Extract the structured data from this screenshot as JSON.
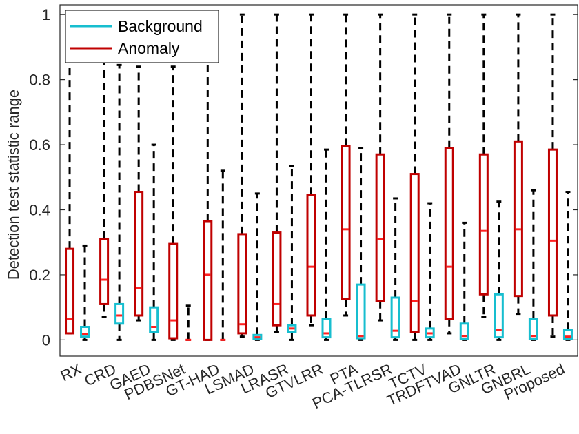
{
  "chart_data": {
    "type": "boxplot",
    "title": "",
    "xlabel": "",
    "ylabel": "Detection test statistic range",
    "ylim": [
      -0.05,
      1.03
    ],
    "yticks": [
      0,
      0.2,
      0.4,
      0.6,
      0.8,
      1
    ],
    "ytick_labels": [
      "0",
      "0.2",
      "0.4",
      "0.6",
      "0.8",
      "1"
    ],
    "legend_position": "top-left",
    "categories": [
      "RX",
      "CRD",
      "GAED",
      "PDBSNet",
      "GT-HAD",
      "LSMAD",
      "LRASR",
      "GTVLRR",
      "PTA",
      "PCA-TLRSR",
      "TCTV",
      "TRDFTVAD",
      "GNLTR",
      "GNBRL",
      "Proposed"
    ],
    "series": [
      {
        "name": "Anomaly",
        "color": "#c00000",
        "boxes": [
          {
            "whisker_low": 0.02,
            "q1": 0.02,
            "median": 0.065,
            "q3": 0.28,
            "whisker_high": 1.0
          },
          {
            "whisker_low": 0.07,
            "q1": 0.11,
            "median": 0.185,
            "q3": 0.31,
            "whisker_high": 0.99
          },
          {
            "whisker_low": 0.06,
            "q1": 0.075,
            "median": 0.16,
            "q3": 0.455,
            "whisker_high": 0.84
          },
          {
            "whisker_low": 0.0,
            "q1": 0.005,
            "median": 0.06,
            "q3": 0.295,
            "whisker_high": 0.84
          },
          {
            "whisker_low": 0.0,
            "q1": 0.0,
            "median": 0.2,
            "q3": 0.365,
            "whisker_high": 0.86
          },
          {
            "whisker_low": 0.01,
            "q1": 0.02,
            "median": 0.048,
            "q3": 0.325,
            "whisker_high": 1.0
          },
          {
            "whisker_low": 0.025,
            "q1": 0.045,
            "median": 0.11,
            "q3": 0.33,
            "whisker_high": 1.0
          },
          {
            "whisker_low": 0.045,
            "q1": 0.075,
            "median": 0.225,
            "q3": 0.445,
            "whisker_high": 1.0
          },
          {
            "whisker_low": 0.075,
            "q1": 0.125,
            "median": 0.34,
            "q3": 0.595,
            "whisker_high": 1.0
          },
          {
            "whisker_low": 0.06,
            "q1": 0.12,
            "median": 0.31,
            "q3": 0.57,
            "whisker_high": 1.0
          },
          {
            "whisker_low": 0.0,
            "q1": 0.025,
            "median": 0.12,
            "q3": 0.51,
            "whisker_high": 1.0
          },
          {
            "whisker_low": 0.02,
            "q1": 0.065,
            "median": 0.225,
            "q3": 0.59,
            "whisker_high": 1.0
          },
          {
            "whisker_low": 0.07,
            "q1": 0.14,
            "median": 0.335,
            "q3": 0.57,
            "whisker_high": 1.0
          },
          {
            "whisker_low": 0.08,
            "q1": 0.135,
            "median": 0.34,
            "q3": 0.61,
            "whisker_high": 1.0
          },
          {
            "whisker_low": 0.01,
            "q1": 0.075,
            "median": 0.305,
            "q3": 0.585,
            "whisker_high": 1.0
          }
        ]
      },
      {
        "name": "Background",
        "color": "#17becf",
        "boxes": [
          {
            "whisker_low": 0.0,
            "q1": 0.01,
            "median": 0.018,
            "q3": 0.04,
            "whisker_high": 0.29
          },
          {
            "whisker_low": 0.0,
            "q1": 0.05,
            "median": 0.075,
            "q3": 0.11,
            "whisker_high": 0.845
          },
          {
            "whisker_low": 0.0,
            "q1": 0.025,
            "median": 0.04,
            "q3": 0.1,
            "whisker_high": 0.6
          },
          {
            "whisker_low": 0.0,
            "q1": 0.0,
            "median": 0.0,
            "q3": 0.0,
            "whisker_high": 0.105
          },
          {
            "whisker_low": 0.0,
            "q1": 0.0,
            "median": 0.0,
            "q3": 0.0,
            "whisker_high": 0.52
          },
          {
            "whisker_low": 0.0,
            "q1": 0.003,
            "median": 0.008,
            "q3": 0.015,
            "whisker_high": 0.45
          },
          {
            "whisker_low": 0.0,
            "q1": 0.025,
            "median": 0.035,
            "q3": 0.045,
            "whisker_high": 0.535
          },
          {
            "whisker_low": 0.0,
            "q1": 0.008,
            "median": 0.02,
            "q3": 0.065,
            "whisker_high": 0.585
          },
          {
            "whisker_low": 0.0,
            "q1": 0.005,
            "median": 0.012,
            "q3": 0.17,
            "whisker_high": 0.59
          },
          {
            "whisker_low": 0.0,
            "q1": 0.008,
            "median": 0.028,
            "q3": 0.13,
            "whisker_high": 0.435
          },
          {
            "whisker_low": 0.0,
            "q1": 0.008,
            "median": 0.02,
            "q3": 0.035,
            "whisker_high": 0.42
          },
          {
            "whisker_low": 0.0,
            "q1": 0.003,
            "median": 0.012,
            "q3": 0.05,
            "whisker_high": 0.36
          },
          {
            "whisker_low": 0.0,
            "q1": 0.008,
            "median": 0.03,
            "q3": 0.14,
            "whisker_high": 0.425
          },
          {
            "whisker_low": 0.0,
            "q1": 0.003,
            "median": 0.012,
            "q3": 0.065,
            "whisker_high": 0.46
          },
          {
            "whisker_low": 0.0,
            "q1": 0.003,
            "median": 0.01,
            "q3": 0.03,
            "whisker_high": 0.455
          }
        ]
      }
    ],
    "legend": [
      {
        "name": "Background",
        "color": "#17becf"
      },
      {
        "name": "Anomaly",
        "color": "#c00000"
      }
    ],
    "median_color": "#ff2020",
    "whisker_color": "#000000"
  }
}
